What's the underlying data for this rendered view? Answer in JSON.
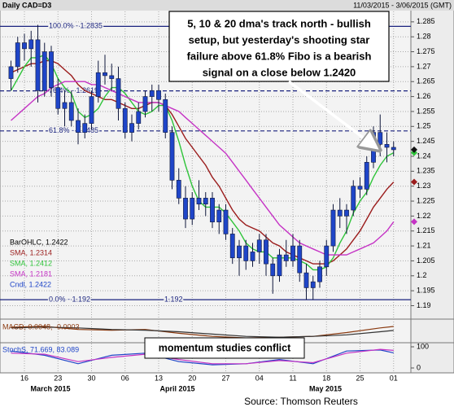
{
  "chart_data": {
    "type": "candlestick",
    "title": "Daily CAD=D3",
    "date_range": "11/03/2015 - 3/06/2015 (GMT)",
    "categories": [
      null,
      null,
      "16",
      null,
      null,
      null,
      null,
      "23",
      null,
      null,
      null,
      null,
      "30",
      null,
      null,
      null,
      null,
      "06",
      null,
      null,
      null,
      null,
      "13",
      null,
      null,
      null,
      null,
      "20",
      null,
      null,
      null,
      null,
      "27",
      null,
      null,
      null,
      null,
      "04",
      null,
      null,
      null,
      null,
      "11",
      null,
      null,
      null,
      null,
      "18",
      null,
      null,
      null,
      null,
      "25",
      null,
      null,
      null,
      null,
      "01"
    ],
    "months": [
      "March 2015",
      "April 2015",
      "May 2015"
    ],
    "candle_color": "#1f45c8",
    "open": [
      1.266,
      1.27,
      1.278,
      1.276,
      1.279,
      1.262,
      1.275,
      1.263,
      1.256,
      1.258,
      1.252,
      1.248,
      1.251,
      1.26,
      1.268,
      1.267,
      1.266,
      1.256,
      1.248,
      1.251,
      1.255,
      1.26,
      1.262,
      1.259,
      1.248,
      1.232,
      1.226,
      1.219,
      1.226,
      1.224,
      1.226,
      1.218,
      1.222,
      1.214,
      1.206,
      1.21,
      1.205,
      1.208,
      1.212,
      1.204,
      1.2,
      1.207,
      1.205,
      1.21,
      1.201,
      1.196,
      1.198,
      1.203,
      1.21,
      1.222,
      1.22,
      1.222,
      1.23,
      1.229,
      1.238,
      1.248,
      1.244,
      1.243
    ],
    "high": [
      1.272,
      1.28,
      1.281,
      1.282,
      1.284,
      1.278,
      1.277,
      1.266,
      1.262,
      1.262,
      1.256,
      1.254,
      1.262,
      1.272,
      1.274,
      1.271,
      1.27,
      1.258,
      1.254,
      1.258,
      1.262,
      1.264,
      1.264,
      1.261,
      1.25,
      1.236,
      1.23,
      1.228,
      1.232,
      1.228,
      1.228,
      1.224,
      1.224,
      1.216,
      1.212,
      1.212,
      1.211,
      1.214,
      1.214,
      1.206,
      1.209,
      1.212,
      1.214,
      1.212,
      1.204,
      1.2,
      1.205,
      1.212,
      1.224,
      1.226,
      1.224,
      1.232,
      1.233,
      1.24,
      1.25,
      1.254,
      1.248,
      1.245
    ],
    "low": [
      1.262,
      1.268,
      1.272,
      1.27,
      1.258,
      1.26,
      1.26,
      1.254,
      1.25,
      1.25,
      1.244,
      1.246,
      1.249,
      1.258,
      1.264,
      1.262,
      1.252,
      1.246,
      1.245,
      1.249,
      1.253,
      1.255,
      1.255,
      1.246,
      1.229,
      1.224,
      1.216,
      1.217,
      1.222,
      1.22,
      1.216,
      1.214,
      1.212,
      1.204,
      1.2,
      1.202,
      1.203,
      1.204,
      1.2,
      1.194,
      1.198,
      1.203,
      1.203,
      1.198,
      1.192,
      1.192,
      1.196,
      1.2,
      1.208,
      1.216,
      1.214,
      1.22,
      1.226,
      1.227,
      1.236,
      1.24,
      1.238,
      1.24
    ],
    "close": [
      1.27,
      1.278,
      1.276,
      1.279,
      1.262,
      1.275,
      1.263,
      1.256,
      1.258,
      1.252,
      1.248,
      1.251,
      1.26,
      1.268,
      1.267,
      1.266,
      1.256,
      1.248,
      1.251,
      1.255,
      1.26,
      1.262,
      1.259,
      1.248,
      1.232,
      1.226,
      1.219,
      1.226,
      1.224,
      1.226,
      1.218,
      1.222,
      1.214,
      1.206,
      1.21,
      1.205,
      1.208,
      1.212,
      1.204,
      1.2,
      1.207,
      1.205,
      1.21,
      1.201,
      1.196,
      1.198,
      1.203,
      1.21,
      1.222,
      1.22,
      1.222,
      1.23,
      1.229,
      1.238,
      1.248,
      1.244,
      1.243,
      1.2422
    ],
    "series": [
      {
        "name": "SMA, 1.2314",
        "color": "#9b1c1c",
        "values": [
          1.268,
          1.269,
          1.27,
          1.271,
          1.271,
          1.272,
          1.272,
          1.271,
          1.269,
          1.267,
          1.264,
          1.262,
          1.261,
          1.26,
          1.259,
          1.259,
          1.258,
          1.257,
          1.256,
          1.256,
          1.257,
          1.258,
          1.258,
          1.257,
          1.254,
          1.25,
          1.246,
          1.243,
          1.24,
          1.237,
          1.233,
          1.23,
          1.226,
          1.222,
          1.219,
          1.217,
          1.216,
          1.215,
          1.213,
          1.211,
          1.21,
          1.208,
          1.207,
          1.206,
          1.205,
          1.204,
          1.204,
          1.204,
          1.205,
          1.207,
          1.209,
          1.212,
          1.215,
          1.219,
          1.223,
          1.226,
          1.229,
          1.2314
        ]
      },
      {
        "name": "SMA, 1.2412",
        "color": "#2fc43a",
        "values": [
          1.262,
          1.266,
          1.27,
          1.273,
          1.273,
          1.274,
          1.271,
          1.266,
          1.263,
          1.261,
          1.255,
          1.253,
          1.254,
          1.256,
          1.26,
          1.263,
          1.263,
          1.261,
          1.258,
          1.255,
          1.254,
          1.255,
          1.257,
          1.257,
          1.252,
          1.245,
          1.237,
          1.23,
          1.225,
          1.223,
          1.223,
          1.223,
          1.221,
          1.218,
          1.215,
          1.211,
          1.209,
          1.208,
          1.208,
          1.206,
          1.206,
          1.206,
          1.206,
          1.205,
          1.204,
          1.202,
          1.202,
          1.203,
          1.206,
          1.211,
          1.215,
          1.221,
          1.225,
          1.228,
          1.233,
          1.237,
          1.24,
          1.2412
        ]
      },
      {
        "name": "SMA, 1.2181",
        "color": "#c533c5",
        "values": [
          1.252,
          1.254,
          1.256,
          1.258,
          1.26,
          1.261,
          1.263,
          1.264,
          1.265,
          1.265,
          1.265,
          1.265,
          1.264,
          1.264,
          1.263,
          1.262,
          1.261,
          1.26,
          1.259,
          1.258,
          1.258,
          1.258,
          1.258,
          1.257,
          1.256,
          1.255,
          1.253,
          1.251,
          1.249,
          1.247,
          1.245,
          1.243,
          1.241,
          1.238,
          1.235,
          1.232,
          1.229,
          1.226,
          1.223,
          1.22,
          1.217,
          1.215,
          1.213,
          1.211,
          1.21,
          1.209,
          1.208,
          1.207,
          1.207,
          1.207,
          1.207,
          1.208,
          1.209,
          1.21,
          1.211,
          1.213,
          1.215,
          1.2181
        ]
      }
    ],
    "legend": [
      {
        "label": "BarOHLC, 1.2422",
        "color": "#000000"
      },
      {
        "label": "SMA, 1.2314",
        "color": "#9b1c1c"
      },
      {
        "label": "SMA, 1.2412",
        "color": "#2fc43a"
      },
      {
        "label": "SMA, 1.2181",
        "color": "#c533c5"
      },
      {
        "label": "Cndl, 1.2422",
        "color": "#1f45c8"
      }
    ],
    "ylim": [
      1.1855,
      1.2885
    ],
    "yticks": [
      1.19,
      1.195,
      1.2,
      1.205,
      1.21,
      1.215,
      1.22,
      1.225,
      1.23,
      1.235,
      1.24,
      1.245,
      1.25,
      1.255,
      1.26,
      1.265,
      1.27,
      1.275,
      1.28,
      1.285
    ],
    "grid": true,
    "fib": [
      {
        "label": "100.0% - 1.2835",
        "value": 1.2835,
        "dashed": false
      },
      {
        "label": "76.4% - 1.2619",
        "value": 1.2619,
        "dashed": true
      },
      {
        "label": "61.8% - 1.2485",
        "value": 1.2485,
        "dashed": true
      },
      {
        "label": "0.0% - 1.192",
        "value": 1.192,
        "dashed": false,
        "mid_label": "1.192"
      }
    ],
    "annotation": [
      "5, 10 & 20 dma's track north - bullish",
      "setup, but yesterday's shooting star",
      "failure above 61.8% Fibo is a bearish",
      "signal on a close below 1.2420"
    ],
    "momentum_note": "momentum studies conflict",
    "macd": {
      "label": "MACD, 0.0048, -0.0003",
      "x": [
        0,
        5,
        10,
        15,
        20,
        25,
        30,
        35,
        40,
        45,
        50,
        55,
        57
      ],
      "ylim": [
        -0.013,
        0.008
      ],
      "series": [
        {
          "color": "#8a3a10",
          "values": [
            0.004,
            0.005,
            0.001,
            0.0,
            0.001,
            -0.004,
            -0.008,
            -0.01,
            -0.009,
            -0.008,
            -0.003,
            0.003,
            0.0048
          ]
        },
        {
          "color": "#333333",
          "values": [
            0.003,
            0.004,
            0.003,
            0.001,
            0.0,
            -0.002,
            -0.005,
            -0.008,
            -0.009,
            -0.008,
            -0.006,
            -0.002,
            -0.0003
          ]
        }
      ]
    },
    "stoch": {
      "label": "StochS, 71.669, 83.089",
      "x": [
        0,
        5,
        10,
        15,
        20,
        25,
        30,
        35,
        40,
        45,
        50,
        55,
        57
      ],
      "ylim": [
        0,
        100
      ],
      "yticks": [
        0,
        100
      ],
      "series": [
        {
          "color": "#1f45c8",
          "values": [
            80,
            60,
            20,
            60,
            70,
            30,
            15,
            20,
            40,
            20,
            80,
            85,
            71.669
          ]
        },
        {
          "color": "#c533c5",
          "values": [
            70,
            65,
            30,
            50,
            65,
            40,
            20,
            20,
            35,
            25,
            70,
            88,
            83.089
          ]
        }
      ]
    },
    "source": "Source: Thomson Reuters"
  }
}
